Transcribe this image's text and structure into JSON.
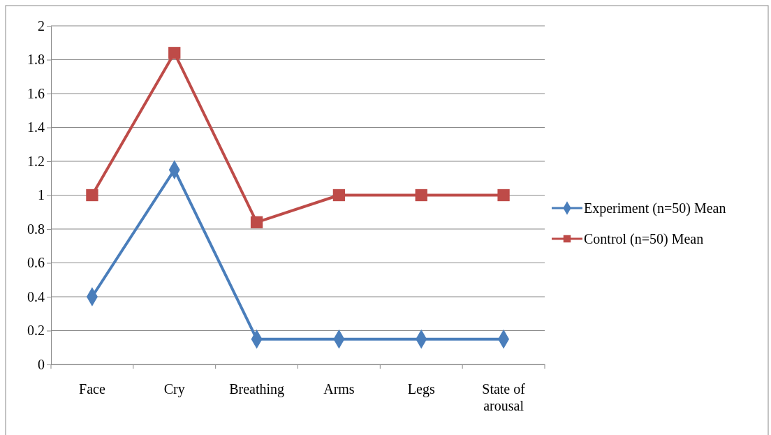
{
  "chart_data": {
    "type": "line",
    "categories": [
      "Face",
      "Cry",
      "Breathing",
      "Arms",
      "Legs",
      "State of arousal"
    ],
    "series": [
      {
        "name": "Experiment (n=50) Mean",
        "color": "#4a7ebb",
        "marker": "diamond",
        "values": [
          0.4,
          1.15,
          0.15,
          0.15,
          0.15,
          0.15
        ]
      },
      {
        "name": "Control (n=50) Mean",
        "color": "#be4b48",
        "marker": "square",
        "values": [
          1,
          1.84,
          0.84,
          1,
          1,
          1
        ]
      }
    ],
    "ylim": [
      0,
      2
    ],
    "yticks": [
      0,
      {
        "value": 0.2,
        "label": "0.2"
      },
      {
        "value": 0.4,
        "label": "0.4"
      },
      {
        "value": 0.6,
        "label": "0.6"
      },
      {
        "value": 0.8,
        "label": "0.8"
      },
      1,
      {
        "value": 1.2,
        "label": "1.2"
      },
      {
        "value": 1.4,
        "label": "1.4"
      },
      {
        "value": 1.6,
        "label": "1.6"
      },
      {
        "value": 1.8,
        "label": "1.8"
      },
      2
    ],
    "grid": "y",
    "legend": "right",
    "line_style": "solid"
  }
}
